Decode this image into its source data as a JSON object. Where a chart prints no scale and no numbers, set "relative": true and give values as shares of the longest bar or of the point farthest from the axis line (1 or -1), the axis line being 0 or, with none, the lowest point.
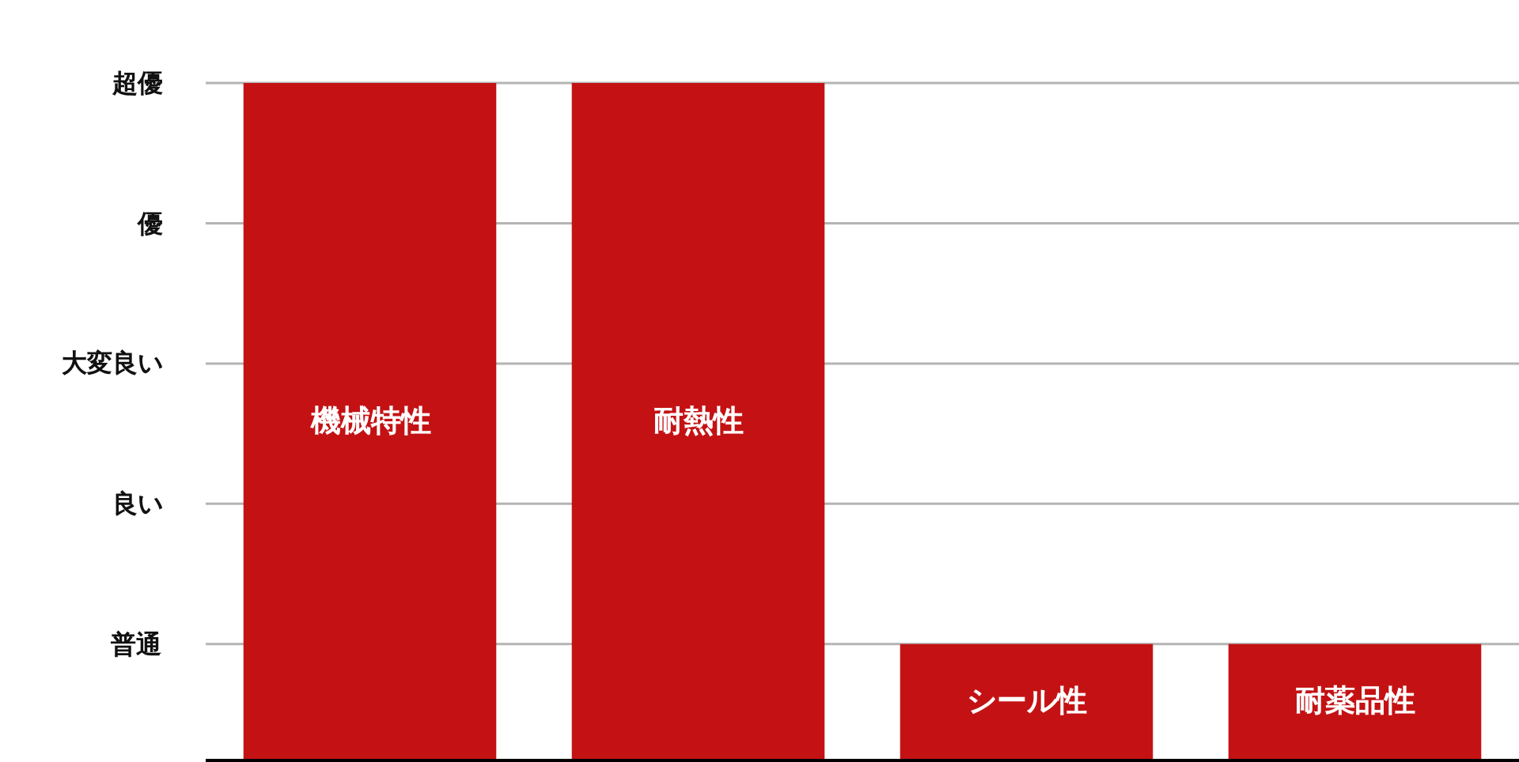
{
  "chart_data": {
    "type": "bar",
    "categories": [
      "機械特性",
      "耐熱性",
      "シール性",
      "耐薬品性"
    ],
    "values": [
      1,
      1,
      0.17,
      0.17
    ],
    "color": "#c41214",
    "relative": true,
    "annotations": [
      "普通",
      "良い",
      "大変良い",
      "優",
      "超優"
    ],
    "grid": "y"
  }
}
